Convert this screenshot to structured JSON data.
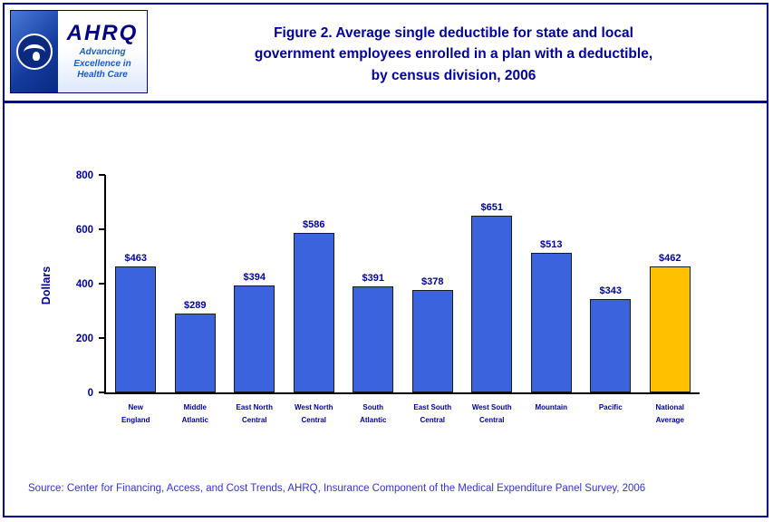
{
  "header": {
    "title": "Figure 2. Average single deductible for state and local\ngovernment employees enrolled in a plan with a deductible,\nby census division, 2006",
    "logo": {
      "org": "AHRQ",
      "tagline": "Advancing\nExcellence in\nHealth Care"
    }
  },
  "chart_data": {
    "type": "bar",
    "title": "Average single deductible for state and local government employees enrolled in a plan with a deductible, by census division, 2006",
    "ylabel": "Dollars",
    "ylim": [
      0,
      800
    ],
    "yticks": [
      0,
      200,
      400,
      600,
      800
    ],
    "grid": false,
    "legend": "none",
    "categories": [
      "New England",
      "Middle Atlantic",
      "East North Central",
      "West North Central",
      "South Atlantic",
      "East South Central",
      "West South Central",
      "Mountain",
      "Pacific",
      "National Average"
    ],
    "category_labels": [
      "New\nEngland",
      "Middle\nAtlantic",
      "East North\nCentral",
      "West North\nCentral",
      "South\nAtlantic",
      "East South\nCentral",
      "West South\nCentral",
      "Mountain",
      "Pacific",
      "National\nAverage"
    ],
    "values": [
      463,
      289,
      394,
      586,
      391,
      378,
      651,
      513,
      343,
      462
    ],
    "value_labels": [
      "$463",
      "$289",
      "$394",
      "$586",
      "$391",
      "$378",
      "$651",
      "$513",
      "$343",
      "$462"
    ],
    "bar_color": "#3B63DC",
    "highlight_color": "#FFC000",
    "highlight_index": 9,
    "axis_color": "#000000",
    "text_color": "#000099"
  },
  "footer": {
    "source": "Source: Center for Financing, Access, and Cost Trends, AHRQ, Insurance Component of the Medical Expenditure Panel Survey, 2006"
  }
}
